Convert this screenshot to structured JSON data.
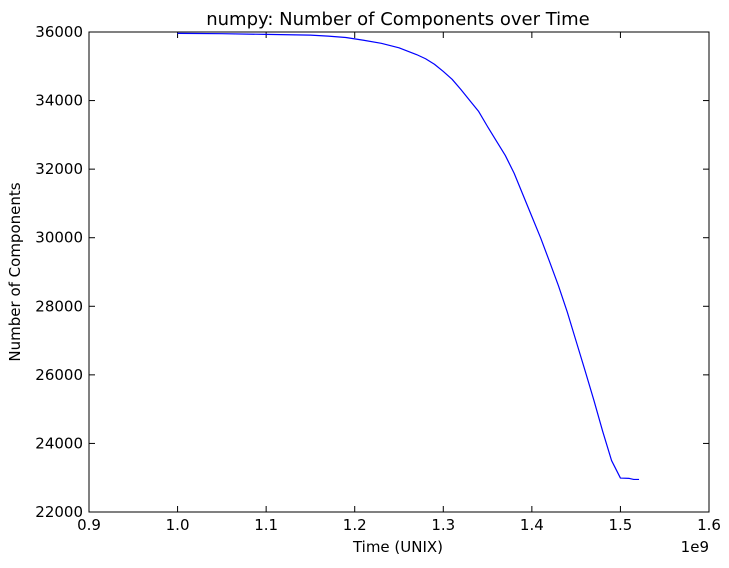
{
  "chart_data": {
    "type": "line",
    "title": "numpy: Number of Components over Time",
    "xlabel": "Time (UNIX)",
    "ylabel": "Number of Components",
    "x_offset_label": "1e9",
    "xlim": [
      0.9,
      1.6
    ],
    "ylim": [
      22000,
      36000
    ],
    "x_ticks": [
      "0.9",
      "1.0",
      "1.1",
      "1.2",
      "1.3",
      "1.4",
      "1.5",
      "1.6"
    ],
    "y_ticks": [
      "22000",
      "24000",
      "26000",
      "28000",
      "30000",
      "32000",
      "34000",
      "36000"
    ],
    "grid": false,
    "legend": "none",
    "series": [
      {
        "color": "#0000ff",
        "x": [
          1.0,
          1.05,
          1.1,
          1.15,
          1.17,
          1.19,
          1.2,
          1.21,
          1.23,
          1.25,
          1.27,
          1.28,
          1.29,
          1.3,
          1.31,
          1.32,
          1.33,
          1.34,
          1.35,
          1.36,
          1.37,
          1.38,
          1.39,
          1.4,
          1.41,
          1.42,
          1.43,
          1.44,
          1.45,
          1.46,
          1.47,
          1.48,
          1.49,
          1.5,
          1.51,
          1.515,
          1.521
        ],
        "y": [
          35960,
          35950,
          35930,
          35910,
          35880,
          35840,
          35800,
          35760,
          35670,
          35540,
          35340,
          35220,
          35060,
          34850,
          34620,
          34320,
          34000,
          33680,
          33240,
          32820,
          32400,
          31880,
          31250,
          30620,
          29990,
          29300,
          28600,
          27830,
          26980,
          26130,
          25260,
          24350,
          23500,
          22990,
          22980,
          22950,
          22950
        ]
      }
    ]
  }
}
